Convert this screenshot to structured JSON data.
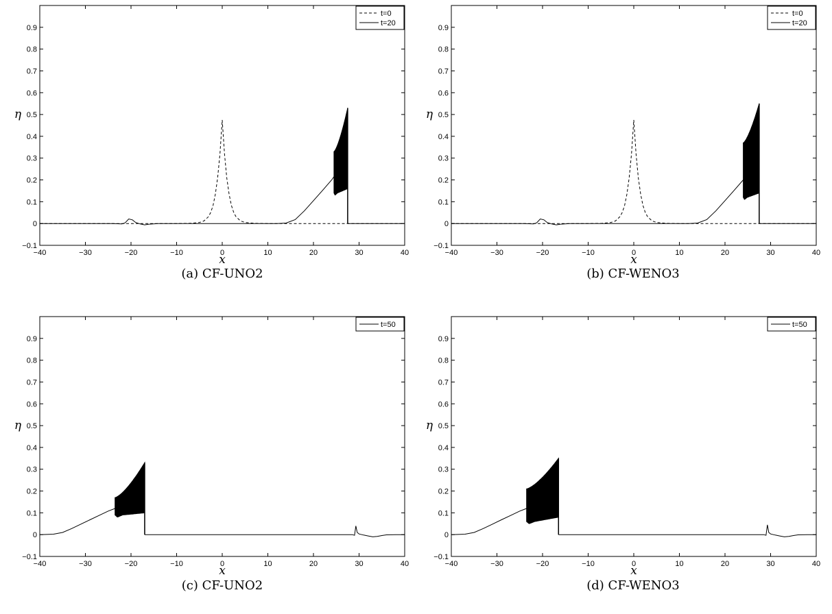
{
  "chart_data": [
    {
      "type": "line",
      "caption": "(a) CF-UNO2",
      "xlabel": "x",
      "ylabel": "η",
      "xlim": [
        -40,
        40
      ],
      "ylim": [
        -0.1,
        1.0
      ],
      "xticks": [
        -40,
        -30,
        -20,
        -10,
        0,
        10,
        20,
        30,
        40
      ],
      "yticks": [
        -0.1,
        0,
        0.1,
        0.2,
        0.3,
        0.4,
        0.5,
        0.6,
        0.7,
        0.8,
        0.9
      ],
      "legend_position": "top-right",
      "series": [
        {
          "name": "t=0",
          "style": "dashed",
          "x": [
            -40,
            -10,
            -7,
            -5,
            -4,
            -3,
            -2.5,
            -2,
            -1.5,
            -1,
            -0.5,
            0,
            0.5,
            1,
            1.5,
            2,
            2.5,
            3,
            4,
            5,
            7,
            10,
            40
          ],
          "y": [
            0,
            0,
            0.001,
            0.005,
            0.012,
            0.032,
            0.052,
            0.084,
            0.135,
            0.21,
            0.32,
            0.475,
            0.32,
            0.21,
            0.135,
            0.084,
            0.052,
            0.032,
            0.012,
            0.005,
            0.001,
            0,
            0
          ]
        },
        {
          "name": "t=20",
          "style": "solid",
          "x": [
            -40,
            -24,
            -22,
            -21.3,
            -20.5,
            -19.7,
            -19,
            -18,
            -17,
            -16,
            -14,
            -12,
            12,
            14,
            16,
            18,
            20,
            22,
            24,
            24.5
          ],
          "y": [
            0,
            0,
            -0.002,
            0.003,
            0.021,
            0.017,
            0.005,
            -0.002,
            -0.006,
            -0.003,
            0,
            0,
            0,
            0.002,
            0.018,
            0.058,
            0.105,
            0.152,
            0.2,
            0.215
          ],
          "oscillation": {
            "x_start": 24.5,
            "x_end": 27.5,
            "upper_start": 0.33,
            "upper_end": 0.53,
            "lower_start": 0.14,
            "lower_end": 0.16,
            "dip": 0.13
          },
          "tail": {
            "x": [
              27.5,
              40
            ],
            "y": [
              0,
              0
            ]
          }
        }
      ]
    },
    {
      "type": "line",
      "caption": "(b) CF-WENO3",
      "xlabel": "x",
      "ylabel": "η",
      "xlim": [
        -40,
        40
      ],
      "ylim": [
        -0.1,
        1.0
      ],
      "xticks": [
        -40,
        -30,
        -20,
        -10,
        0,
        10,
        20,
        30,
        40
      ],
      "yticks": [
        -0.1,
        0,
        0.1,
        0.2,
        0.3,
        0.4,
        0.5,
        0.6,
        0.7,
        0.8,
        0.9
      ],
      "legend_position": "top-right",
      "series": [
        {
          "name": "t=0",
          "style": "dashed",
          "x": [
            -40,
            -10,
            -7,
            -5,
            -4,
            -3,
            -2.5,
            -2,
            -1.5,
            -1,
            -0.5,
            0,
            0.5,
            1,
            1.5,
            2,
            2.5,
            3,
            4,
            5,
            7,
            10,
            40
          ],
          "y": [
            0,
            0,
            0.001,
            0.005,
            0.012,
            0.032,
            0.052,
            0.084,
            0.135,
            0.21,
            0.32,
            0.475,
            0.32,
            0.21,
            0.135,
            0.084,
            0.052,
            0.032,
            0.012,
            0.005,
            0.001,
            0,
            0
          ]
        },
        {
          "name": "t=20",
          "style": "solid",
          "x": [
            -40,
            -24,
            -22,
            -21.3,
            -20.5,
            -19.7,
            -19,
            -18,
            -17,
            -16,
            -14,
            -12,
            12,
            14,
            16,
            18,
            20,
            22,
            24
          ],
          "y": [
            0,
            0,
            -0.002,
            0.003,
            0.021,
            0.017,
            0.005,
            -0.002,
            -0.006,
            -0.003,
            0,
            0,
            0,
            0.002,
            0.018,
            0.058,
            0.105,
            0.152,
            0.2
          ],
          "oscillation": {
            "x_start": 24,
            "x_end": 27.5,
            "upper_start": 0.37,
            "upper_end": 0.55,
            "lower_start": 0.12,
            "lower_end": 0.14,
            "dip": 0.11
          },
          "tail": {
            "x": [
              27.5,
              40
            ],
            "y": [
              0,
              0
            ]
          }
        }
      ]
    },
    {
      "type": "line",
      "caption": "(c) CF-UNO2",
      "xlabel": "x",
      "ylabel": "η",
      "xlim": [
        -40,
        40
      ],
      "ylim": [
        -0.1,
        1.0
      ],
      "xticks": [
        -40,
        -30,
        -20,
        -10,
        0,
        10,
        20,
        30,
        40
      ],
      "yticks": [
        -0.1,
        0,
        0.1,
        0.2,
        0.3,
        0.4,
        0.5,
        0.6,
        0.7,
        0.8,
        0.9
      ],
      "legend_position": "top-right",
      "series": [
        {
          "name": "t=50",
          "style": "solid",
          "x": [
            -40,
            -37,
            -35,
            -33,
            -31,
            -29,
            -27,
            -25,
            -23.5
          ],
          "y": [
            0,
            0.002,
            0.01,
            0.028,
            0.048,
            0.068,
            0.088,
            0.108,
            0.12
          ],
          "oscillation": {
            "x_start": -23.5,
            "x_end": -17,
            "upper_start": 0.17,
            "upper_end": 0.33,
            "lower_start": 0.09,
            "lower_end": 0.1,
            "dip": 0.08
          },
          "tail": {
            "x": [
              -17,
              28.5,
              29,
              29.3,
              29.6,
              30,
              31,
              32,
              33,
              34,
              35,
              36,
              38,
              40
            ],
            "y": [
              0,
              0,
              -0.003,
              0.04,
              0.01,
              0.003,
              -0.002,
              -0.006,
              -0.01,
              -0.008,
              -0.004,
              -0.001,
              0,
              0
            ]
          }
        }
      ]
    },
    {
      "type": "line",
      "caption": "(d) CF-WENO3",
      "xlabel": "x",
      "ylabel": "η",
      "xlim": [
        -40,
        40
      ],
      "ylim": [
        -0.1,
        1.0
      ],
      "xticks": [
        -40,
        -30,
        -20,
        -10,
        0,
        10,
        20,
        30,
        40
      ],
      "yticks": [
        -0.1,
        0,
        0.1,
        0.2,
        0.3,
        0.4,
        0.5,
        0.6,
        0.7,
        0.8,
        0.9
      ],
      "legend_position": "top-right",
      "series": [
        {
          "name": "t=50",
          "style": "solid",
          "x": [
            -40,
            -37,
            -35,
            -33,
            -31,
            -29,
            -27,
            -25,
            -23.5
          ],
          "y": [
            0,
            0.002,
            0.01,
            0.028,
            0.048,
            0.068,
            0.088,
            0.108,
            0.12
          ],
          "oscillation": {
            "x_start": -23.5,
            "x_end": -16.5,
            "upper_start": 0.21,
            "upper_end": 0.35,
            "lower_start": 0.06,
            "lower_end": 0.08,
            "dip": 0.05
          },
          "tail": {
            "x": [
              -16.5,
              28.5,
              29,
              29.3,
              29.6,
              30,
              31,
              32,
              33,
              34,
              35,
              36,
              38,
              40
            ],
            "y": [
              0,
              0,
              -0.003,
              0.045,
              0.01,
              0.003,
              -0.002,
              -0.006,
              -0.01,
              -0.008,
              -0.004,
              -0.001,
              0,
              0
            ]
          }
        }
      ]
    }
  ]
}
